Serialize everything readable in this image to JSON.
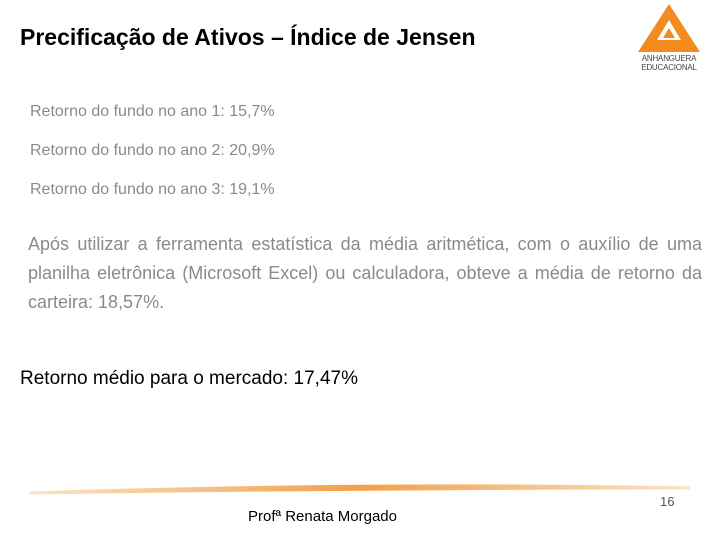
{
  "header": {
    "title": "Precificação de Ativos – Índice de Jensen",
    "logo": [
      "ANHANGUERA",
      "EDUCACIONAL"
    ]
  },
  "returns": [
    "Retorno do fundo no ano 1: 15,7%",
    "Retorno do fundo no ano 2: 20,9%",
    "Retorno do fundo no ano 3: 19,1%"
  ],
  "paragraph": "Após utilizar a ferramenta estatística da média aritmética, com o auxílio de uma planilha eletrônica (Microsoft Excel) ou calculadora, obteve a média de retorno da carteira: 18,57%.",
  "market": "Retorno médio para o mercado: 17,47%",
  "footer": {
    "author": "Profª Renata Morgado",
    "page": "16"
  }
}
